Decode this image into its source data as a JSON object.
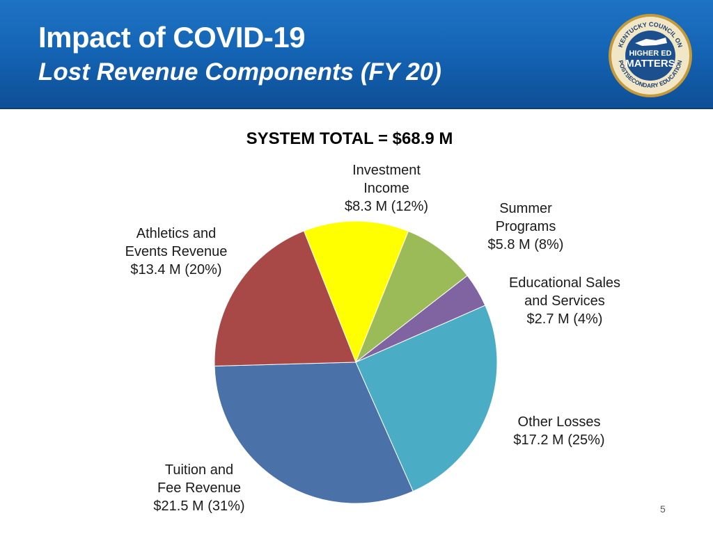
{
  "slide": {
    "title": "Impact of COVID-19",
    "subtitle": "Lost Revenue Components (FY 20)",
    "page_number": "5",
    "header_color": "#1565b6"
  },
  "logo": {
    "arc_top": "KENTUCKY COUNCIL ON",
    "arc_bottom": "POSTSECONDARY EDUCATION",
    "line1": "HIGHER ED",
    "line2": "MATTERS"
  },
  "chart_data": {
    "type": "pie",
    "title": "SYSTEM TOTAL = $68.9 M",
    "unit": "$ M",
    "slices": [
      {
        "label_lines": [
          "Investment",
          "Income",
          "$8.3 M (12%)"
        ],
        "value": 8.3,
        "percent": 12,
        "color": "#ffff00"
      },
      {
        "label_lines": [
          "Summer",
          "Programs",
          "$5.8 M (8%)"
        ],
        "value": 5.8,
        "percent": 8,
        "color": "#9bbb59"
      },
      {
        "label_lines": [
          "Educational Sales",
          "and Services",
          "$2.7 M (4%)"
        ],
        "value": 2.7,
        "percent": 4,
        "color": "#8064a2"
      },
      {
        "label_lines": [
          "Other Losses",
          "$17.2 M (25%)"
        ],
        "value": 17.2,
        "percent": 25,
        "color": "#4bacc6"
      },
      {
        "label_lines": [
          "Tuition and",
          "Fee Revenue",
          "$21.5 M (31%)"
        ],
        "value": 21.5,
        "percent": 31,
        "color": "#4a72a8"
      },
      {
        "label_lines": [
          "Athletics and",
          "Events Revenue",
          "$13.4 M (20%)"
        ],
        "value": 13.4,
        "percent": 20,
        "color": "#a84947"
      }
    ]
  }
}
